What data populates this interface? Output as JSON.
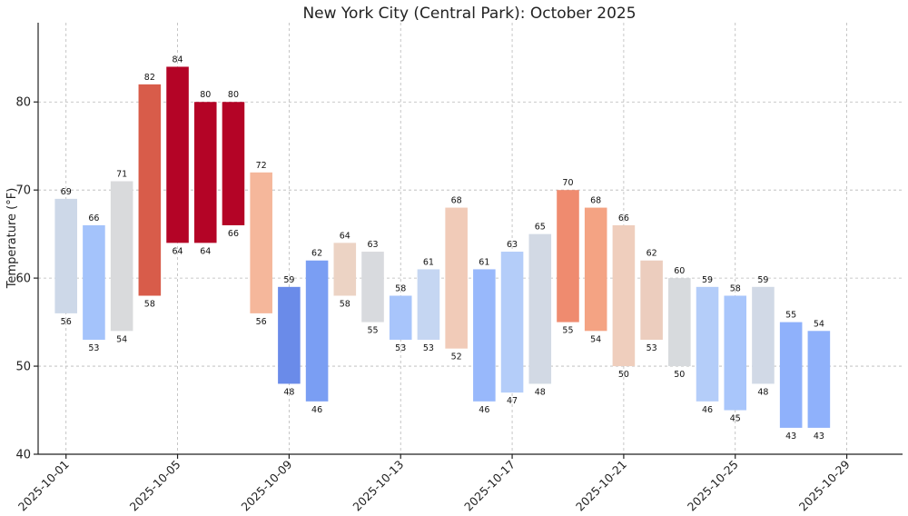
{
  "chart_data": {
    "type": "bar",
    "title": "New York City (Central Park): October 2025",
    "xlabel": "",
    "ylabel": "Temperature (°F)",
    "ylim": [
      40,
      89
    ],
    "xlim": [
      "2025-09-30",
      "2025-10-31"
    ],
    "yticks": [
      40,
      50,
      60,
      70,
      80
    ],
    "xticks": [
      "2025-10-01",
      "2025-10-05",
      "2025-10-09",
      "2025-10-13",
      "2025-10-17",
      "2025-10-21",
      "2025-10-25",
      "2025-10-29"
    ],
    "grid": true,
    "dates": [
      "2025-10-01",
      "2025-10-02",
      "2025-10-03",
      "2025-10-04",
      "2025-10-05",
      "2025-10-06",
      "2025-10-07",
      "2025-10-08",
      "2025-10-09",
      "2025-10-10",
      "2025-10-11",
      "2025-10-12",
      "2025-10-13",
      "2025-10-14",
      "2025-10-15",
      "2025-10-16",
      "2025-10-17",
      "2025-10-18",
      "2025-10-19",
      "2025-10-20",
      "2025-10-21",
      "2025-10-22",
      "2025-10-23",
      "2025-10-24",
      "2025-10-25",
      "2025-10-26",
      "2025-10-27",
      "2025-10-28"
    ],
    "highs": [
      69,
      66,
      71,
      82,
      84,
      80,
      80,
      72,
      59,
      62,
      64,
      63,
      58,
      61,
      68,
      61,
      63,
      65,
      70,
      68,
      66,
      62,
      60,
      59,
      58,
      59,
      55,
      54
    ],
    "lows": [
      56,
      53,
      54,
      58,
      64,
      64,
      66,
      56,
      48,
      46,
      58,
      55,
      53,
      53,
      52,
      46,
      47,
      48,
      55,
      54,
      50,
      53,
      50,
      46,
      45,
      48,
      43,
      43
    ],
    "colors": [
      "#cdd8e8",
      "#a4c3fb",
      "#d9dadc",
      "#d85c4a",
      "#b40426",
      "#b40426",
      "#b40426",
      "#f5b79b",
      "#6a8be9",
      "#7a9ef3",
      "#ecd3c4",
      "#d8dade",
      "#a8c5fb",
      "#c5d6f2",
      "#f1cbb8",
      "#98b8fb",
      "#b4cdf9",
      "#d2d9e4",
      "#ef8b6f",
      "#f4a383",
      "#efcebd",
      "#eccdbe",
      "#d7dadd",
      "#b4cdf9",
      "#a9c6fb",
      "#d1d9e6",
      "#8fb1fb",
      "#8fb1fb"
    ],
    "high_label_color_max": "#c00000",
    "low_label_color_min": "#00007a"
  }
}
